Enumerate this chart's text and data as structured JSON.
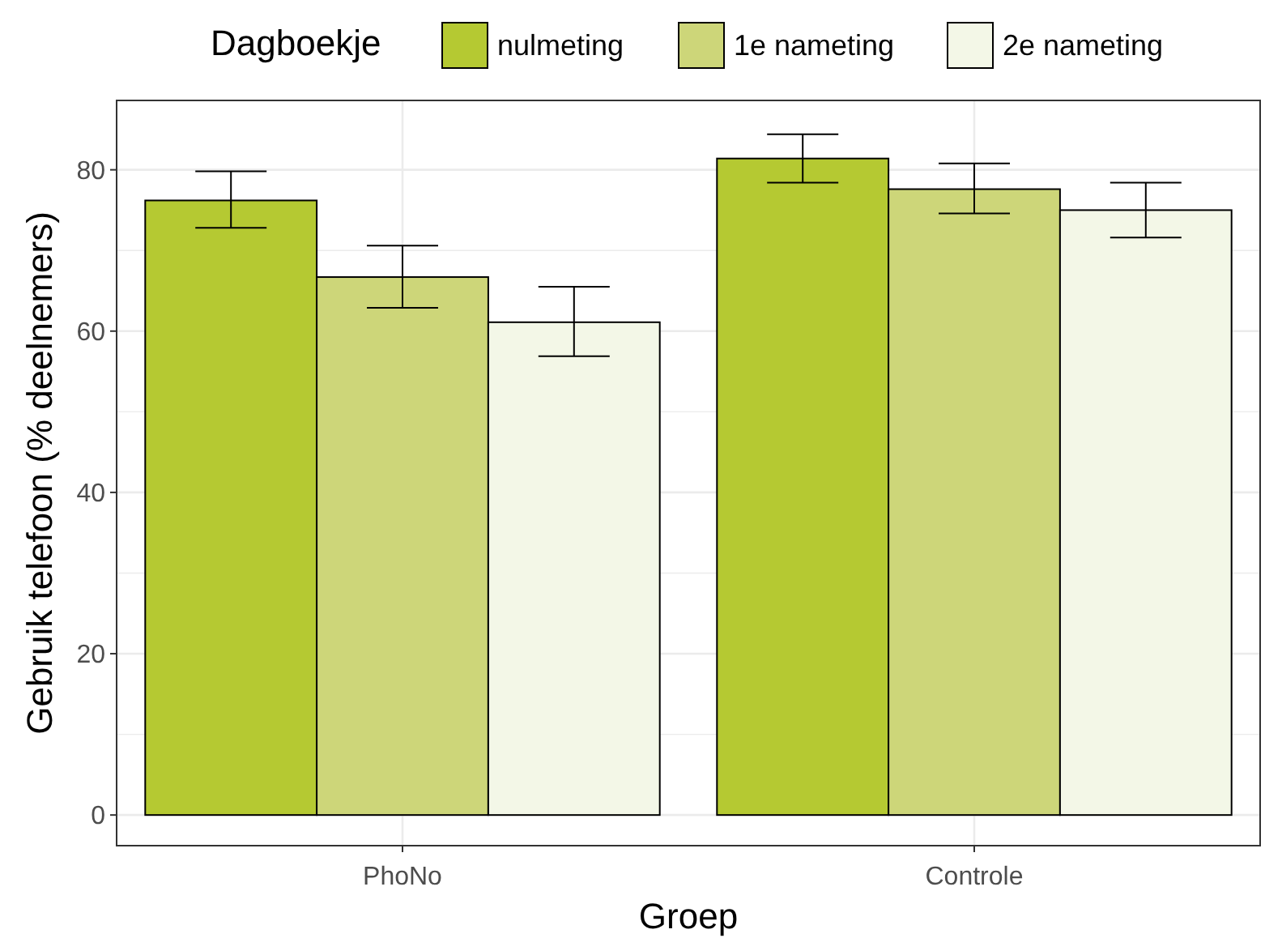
{
  "chart_data": {
    "type": "bar",
    "xlabel": "Groep",
    "ylabel": "Gebruik telefoon (% deelnemers)",
    "legend_title": "Dagboekje",
    "legend": "top",
    "categories": [
      "PhoNo",
      "Controle"
    ],
    "series": [
      {
        "name": "nulmeting",
        "color": "#b5c932",
        "values": [
          76.2,
          81.4
        ],
        "errors": [
          [
            72.8,
            79.8
          ],
          [
            78.4,
            84.4
          ]
        ]
      },
      {
        "name": "1e nameting",
        "color": "#cdd679",
        "values": [
          66.7,
          77.6
        ],
        "errors": [
          [
            62.9,
            70.6
          ],
          [
            74.6,
            80.8
          ]
        ]
      },
      {
        "name": "2e nameting",
        "color": "#f3f7e7",
        "values": [
          61.1,
          75.0
        ],
        "errors": [
          [
            56.9,
            65.5
          ],
          [
            71.6,
            78.4
          ]
        ]
      }
    ],
    "ylim": [
      -3.8,
      88.6
    ],
    "yticks": [
      0,
      20,
      40,
      60,
      80
    ],
    "grid": true
  }
}
